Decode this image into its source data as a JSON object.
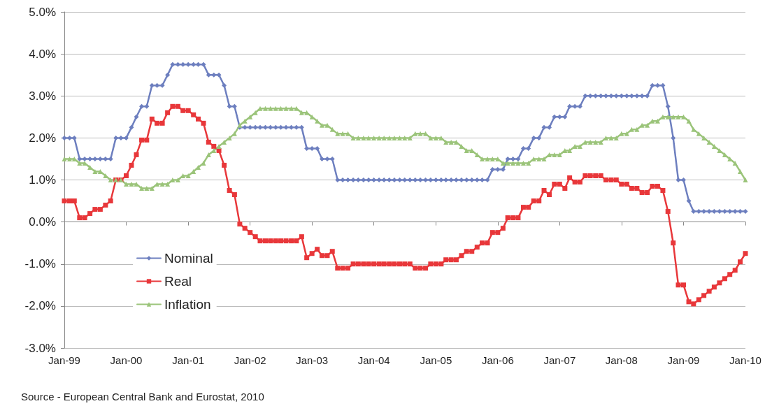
{
  "chart_data": {
    "type": "line",
    "annotations": [
      "Source - European Central Bank and Eurostat, 2010"
    ],
    "x": [
      "1999-01",
      "1999-02",
      "1999-03",
      "1999-04",
      "1999-05",
      "1999-06",
      "1999-07",
      "1999-08",
      "1999-09",
      "1999-10",
      "1999-11",
      "1999-12",
      "2000-01",
      "2000-02",
      "2000-03",
      "2000-04",
      "2000-05",
      "2000-06",
      "2000-07",
      "2000-08",
      "2000-09",
      "2000-10",
      "2000-11",
      "2000-12",
      "2001-01",
      "2001-02",
      "2001-03",
      "2001-04",
      "2001-05",
      "2001-06",
      "2001-07",
      "2001-08",
      "2001-09",
      "2001-10",
      "2001-11",
      "2001-12",
      "2002-01",
      "2002-02",
      "2002-03",
      "2002-04",
      "2002-05",
      "2002-06",
      "2002-07",
      "2002-08",
      "2002-09",
      "2002-10",
      "2002-11",
      "2002-12",
      "2003-01",
      "2003-02",
      "2003-03",
      "2003-04",
      "2003-05",
      "2003-06",
      "2003-07",
      "2003-08",
      "2003-09",
      "2003-10",
      "2003-11",
      "2003-12",
      "2004-01",
      "2004-02",
      "2004-03",
      "2004-04",
      "2004-05",
      "2004-06",
      "2004-07",
      "2004-08",
      "2004-09",
      "2004-10",
      "2004-11",
      "2004-12",
      "2005-01",
      "2005-02",
      "2005-03",
      "2005-04",
      "2005-05",
      "2005-06",
      "2005-07",
      "2005-08",
      "2005-09",
      "2005-10",
      "2005-11",
      "2005-12",
      "2006-01",
      "2006-02",
      "2006-03",
      "2006-04",
      "2006-05",
      "2006-06",
      "2006-07",
      "2006-08",
      "2006-09",
      "2006-10",
      "2006-11",
      "2006-12",
      "2007-01",
      "2007-02",
      "2007-03",
      "2007-04",
      "2007-05",
      "2007-06",
      "2007-07",
      "2007-08",
      "2007-09",
      "2007-10",
      "2007-11",
      "2007-12",
      "2008-01",
      "2008-02",
      "2008-03",
      "2008-04",
      "2008-05",
      "2008-06",
      "2008-07",
      "2008-08",
      "2008-09",
      "2008-10",
      "2008-11",
      "2008-12",
      "2009-01",
      "2009-02",
      "2009-03",
      "2009-04",
      "2009-05",
      "2009-06",
      "2009-07",
      "2009-08",
      "2009-09",
      "2009-10",
      "2009-11",
      "2009-12",
      "2010-01"
    ],
    "series": [
      {
        "name": "Nominal",
        "color": "#6d7fbf",
        "marker": "diamond",
        "values": [
          2.0,
          2.0,
          2.0,
          1.5,
          1.5,
          1.5,
          1.5,
          1.5,
          1.5,
          1.5,
          2.0,
          2.0,
          2.0,
          2.25,
          2.5,
          2.75,
          2.75,
          3.25,
          3.25,
          3.25,
          3.5,
          3.75,
          3.75,
          3.75,
          3.75,
          3.75,
          3.75,
          3.75,
          3.5,
          3.5,
          3.5,
          3.25,
          2.75,
          2.75,
          2.25,
          2.25,
          2.25,
          2.25,
          2.25,
          2.25,
          2.25,
          2.25,
          2.25,
          2.25,
          2.25,
          2.25,
          2.25,
          1.75,
          1.75,
          1.75,
          1.5,
          1.5,
          1.5,
          1.0,
          1.0,
          1.0,
          1.0,
          1.0,
          1.0,
          1.0,
          1.0,
          1.0,
          1.0,
          1.0,
          1.0,
          1.0,
          1.0,
          1.0,
          1.0,
          1.0,
          1.0,
          1.0,
          1.0,
          1.0,
          1.0,
          1.0,
          1.0,
          1.0,
          1.0,
          1.0,
          1.0,
          1.0,
          1.0,
          1.25,
          1.25,
          1.25,
          1.5,
          1.5,
          1.5,
          1.75,
          1.75,
          2.0,
          2.0,
          2.25,
          2.25,
          2.5,
          2.5,
          2.5,
          2.75,
          2.75,
          2.75,
          3.0,
          3.0,
          3.0,
          3.0,
          3.0,
          3.0,
          3.0,
          3.0,
          3.0,
          3.0,
          3.0,
          3.0,
          3.0,
          3.25,
          3.25,
          3.25,
          2.75,
          2.0,
          1.0,
          1.0,
          0.5,
          0.25,
          0.25,
          0.25,
          0.25,
          0.25,
          0.25,
          0.25,
          0.25,
          0.25,
          0.25,
          0.25
        ]
      },
      {
        "name": "Real",
        "color": "#e8373a",
        "marker": "square",
        "values": [
          0.5,
          0.5,
          0.5,
          0.1,
          0.1,
          0.2,
          0.3,
          0.3,
          0.4,
          0.5,
          1.0,
          1.0,
          1.1,
          1.35,
          1.6,
          1.95,
          1.95,
          2.45,
          2.35,
          2.35,
          2.6,
          2.75,
          2.75,
          2.65,
          2.65,
          2.55,
          2.45,
          2.35,
          1.9,
          1.8,
          1.7,
          1.35,
          0.75,
          0.65,
          -0.05,
          -0.15,
          -0.25,
          -0.35,
          -0.45,
          -0.45,
          -0.45,
          -0.45,
          -0.45,
          -0.45,
          -0.45,
          -0.45,
          -0.35,
          -0.85,
          -0.75,
          -0.65,
          -0.8,
          -0.8,
          -0.7,
          -1.1,
          -1.1,
          -1.1,
          -1.0,
          -1.0,
          -1.0,
          -1.0,
          -1.0,
          -1.0,
          -1.0,
          -1.0,
          -1.0,
          -1.0,
          -1.0,
          -1.0,
          -1.1,
          -1.1,
          -1.1,
          -1.0,
          -1.0,
          -1.0,
          -0.9,
          -0.9,
          -0.9,
          -0.8,
          -0.7,
          -0.7,
          -0.6,
          -0.5,
          -0.5,
          -0.25,
          -0.25,
          -0.15,
          0.1,
          0.1,
          0.1,
          0.35,
          0.35,
          0.5,
          0.5,
          0.75,
          0.65,
          0.9,
          0.9,
          0.8,
          1.05,
          0.95,
          0.95,
          1.1,
          1.1,
          1.1,
          1.1,
          1.0,
          1.0,
          1.0,
          0.9,
          0.9,
          0.8,
          0.8,
          0.7,
          0.7,
          0.85,
          0.85,
          0.75,
          0.25,
          -0.5,
          -1.5,
          -1.5,
          -1.9,
          -1.95,
          -1.85,
          -1.75,
          -1.65,
          -1.55,
          -1.45,
          -1.35,
          -1.25,
          -1.15,
          -0.95,
          -0.75
        ]
      },
      {
        "name": "Inflation",
        "color": "#9bc47a",
        "marker": "triangle",
        "values": [
          1.5,
          1.5,
          1.5,
          1.4,
          1.4,
          1.3,
          1.2,
          1.2,
          1.1,
          1.0,
          1.0,
          1.0,
          0.9,
          0.9,
          0.9,
          0.8,
          0.8,
          0.8,
          0.9,
          0.9,
          0.9,
          1.0,
          1.0,
          1.1,
          1.1,
          1.2,
          1.3,
          1.4,
          1.6,
          1.7,
          1.8,
          1.9,
          2.0,
          2.1,
          2.3,
          2.4,
          2.5,
          2.6,
          2.7,
          2.7,
          2.7,
          2.7,
          2.7,
          2.7,
          2.7,
          2.7,
          2.6,
          2.6,
          2.5,
          2.4,
          2.3,
          2.3,
          2.2,
          2.1,
          2.1,
          2.1,
          2.0,
          2.0,
          2.0,
          2.0,
          2.0,
          2.0,
          2.0,
          2.0,
          2.0,
          2.0,
          2.0,
          2.0,
          2.1,
          2.1,
          2.1,
          2.0,
          2.0,
          2.0,
          1.9,
          1.9,
          1.9,
          1.8,
          1.7,
          1.7,
          1.6,
          1.5,
          1.5,
          1.5,
          1.5,
          1.4,
          1.4,
          1.4,
          1.4,
          1.4,
          1.4,
          1.5,
          1.5,
          1.5,
          1.6,
          1.6,
          1.6,
          1.7,
          1.7,
          1.8,
          1.8,
          1.9,
          1.9,
          1.9,
          1.9,
          2.0,
          2.0,
          2.0,
          2.1,
          2.1,
          2.2,
          2.2,
          2.3,
          2.3,
          2.4,
          2.4,
          2.5,
          2.5,
          2.5,
          2.5,
          2.5,
          2.4,
          2.2,
          2.1,
          2.0,
          1.9,
          1.8,
          1.7,
          1.6,
          1.5,
          1.4,
          1.2,
          1.0
        ]
      }
    ],
    "xlim": [
      "1999-01",
      "2010-01"
    ],
    "xticks": [
      {
        "value": "1999-01",
        "label": "Jan-99"
      },
      {
        "value": "2000-01",
        "label": "Jan-00"
      },
      {
        "value": "2001-01",
        "label": "Jan-01"
      },
      {
        "value": "2002-01",
        "label": "Jan-02"
      },
      {
        "value": "2003-01",
        "label": "Jan-03"
      },
      {
        "value": "2004-01",
        "label": "Jan-04"
      },
      {
        "value": "2005-01",
        "label": "Jan-05"
      },
      {
        "value": "2006-01",
        "label": "Jan-06"
      },
      {
        "value": "2007-01",
        "label": "Jan-07"
      },
      {
        "value": "2008-01",
        "label": "Jan-08"
      },
      {
        "value": "2009-01",
        "label": "Jan-09"
      },
      {
        "value": "2010-01",
        "label": "Jan-10"
      }
    ],
    "ylim": [
      -3,
      5
    ],
    "yticks": [
      {
        "value": -3,
        "label": "-3.0%"
      },
      {
        "value": -2,
        "label": "-2.0%"
      },
      {
        "value": -1,
        "label": "-1.0%"
      },
      {
        "value": 0,
        "label": "0.0%"
      },
      {
        "value": 1,
        "label": "1.0%"
      },
      {
        "value": 2,
        "label": "2.0%"
      },
      {
        "value": 3,
        "label": "3.0%"
      },
      {
        "value": 4,
        "label": "4.0%"
      },
      {
        "value": 5,
        "label": "5.0%"
      }
    ],
    "grid": "y",
    "legend": "bottom left",
    "line_style": "solid"
  }
}
